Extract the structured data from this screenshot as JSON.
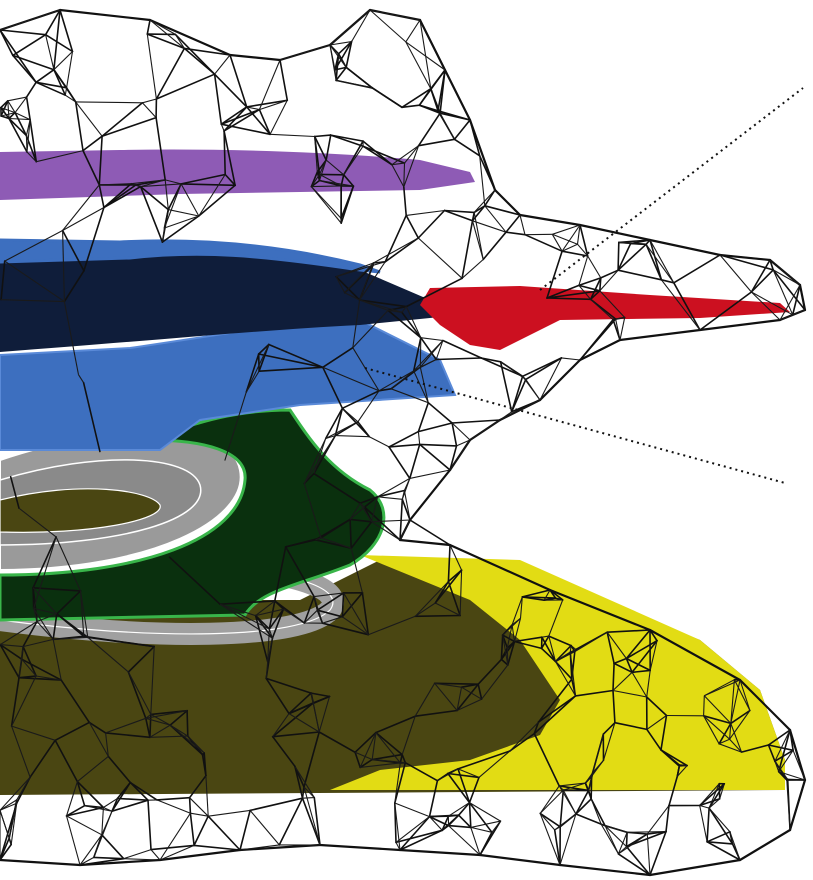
{
  "figure": {
    "kind": "3d-mesh-illustration",
    "background": "#ffffff",
    "labels": []
  },
  "colors": {
    "wireframe": "#111111",
    "purple_layer": "#8e5bb5",
    "blue_layer": "#3d6fbf",
    "navy_layer": "#0f1d3a",
    "red_layer": "#cc1020",
    "dark_green_layer": "#0a300e",
    "light_green_edge": "#39b54a",
    "gray_coil": "#9a9a9a",
    "olive_layer": "#4a4612",
    "yellow_layer": "#e2dc14",
    "leader_line": "#111111"
  }
}
